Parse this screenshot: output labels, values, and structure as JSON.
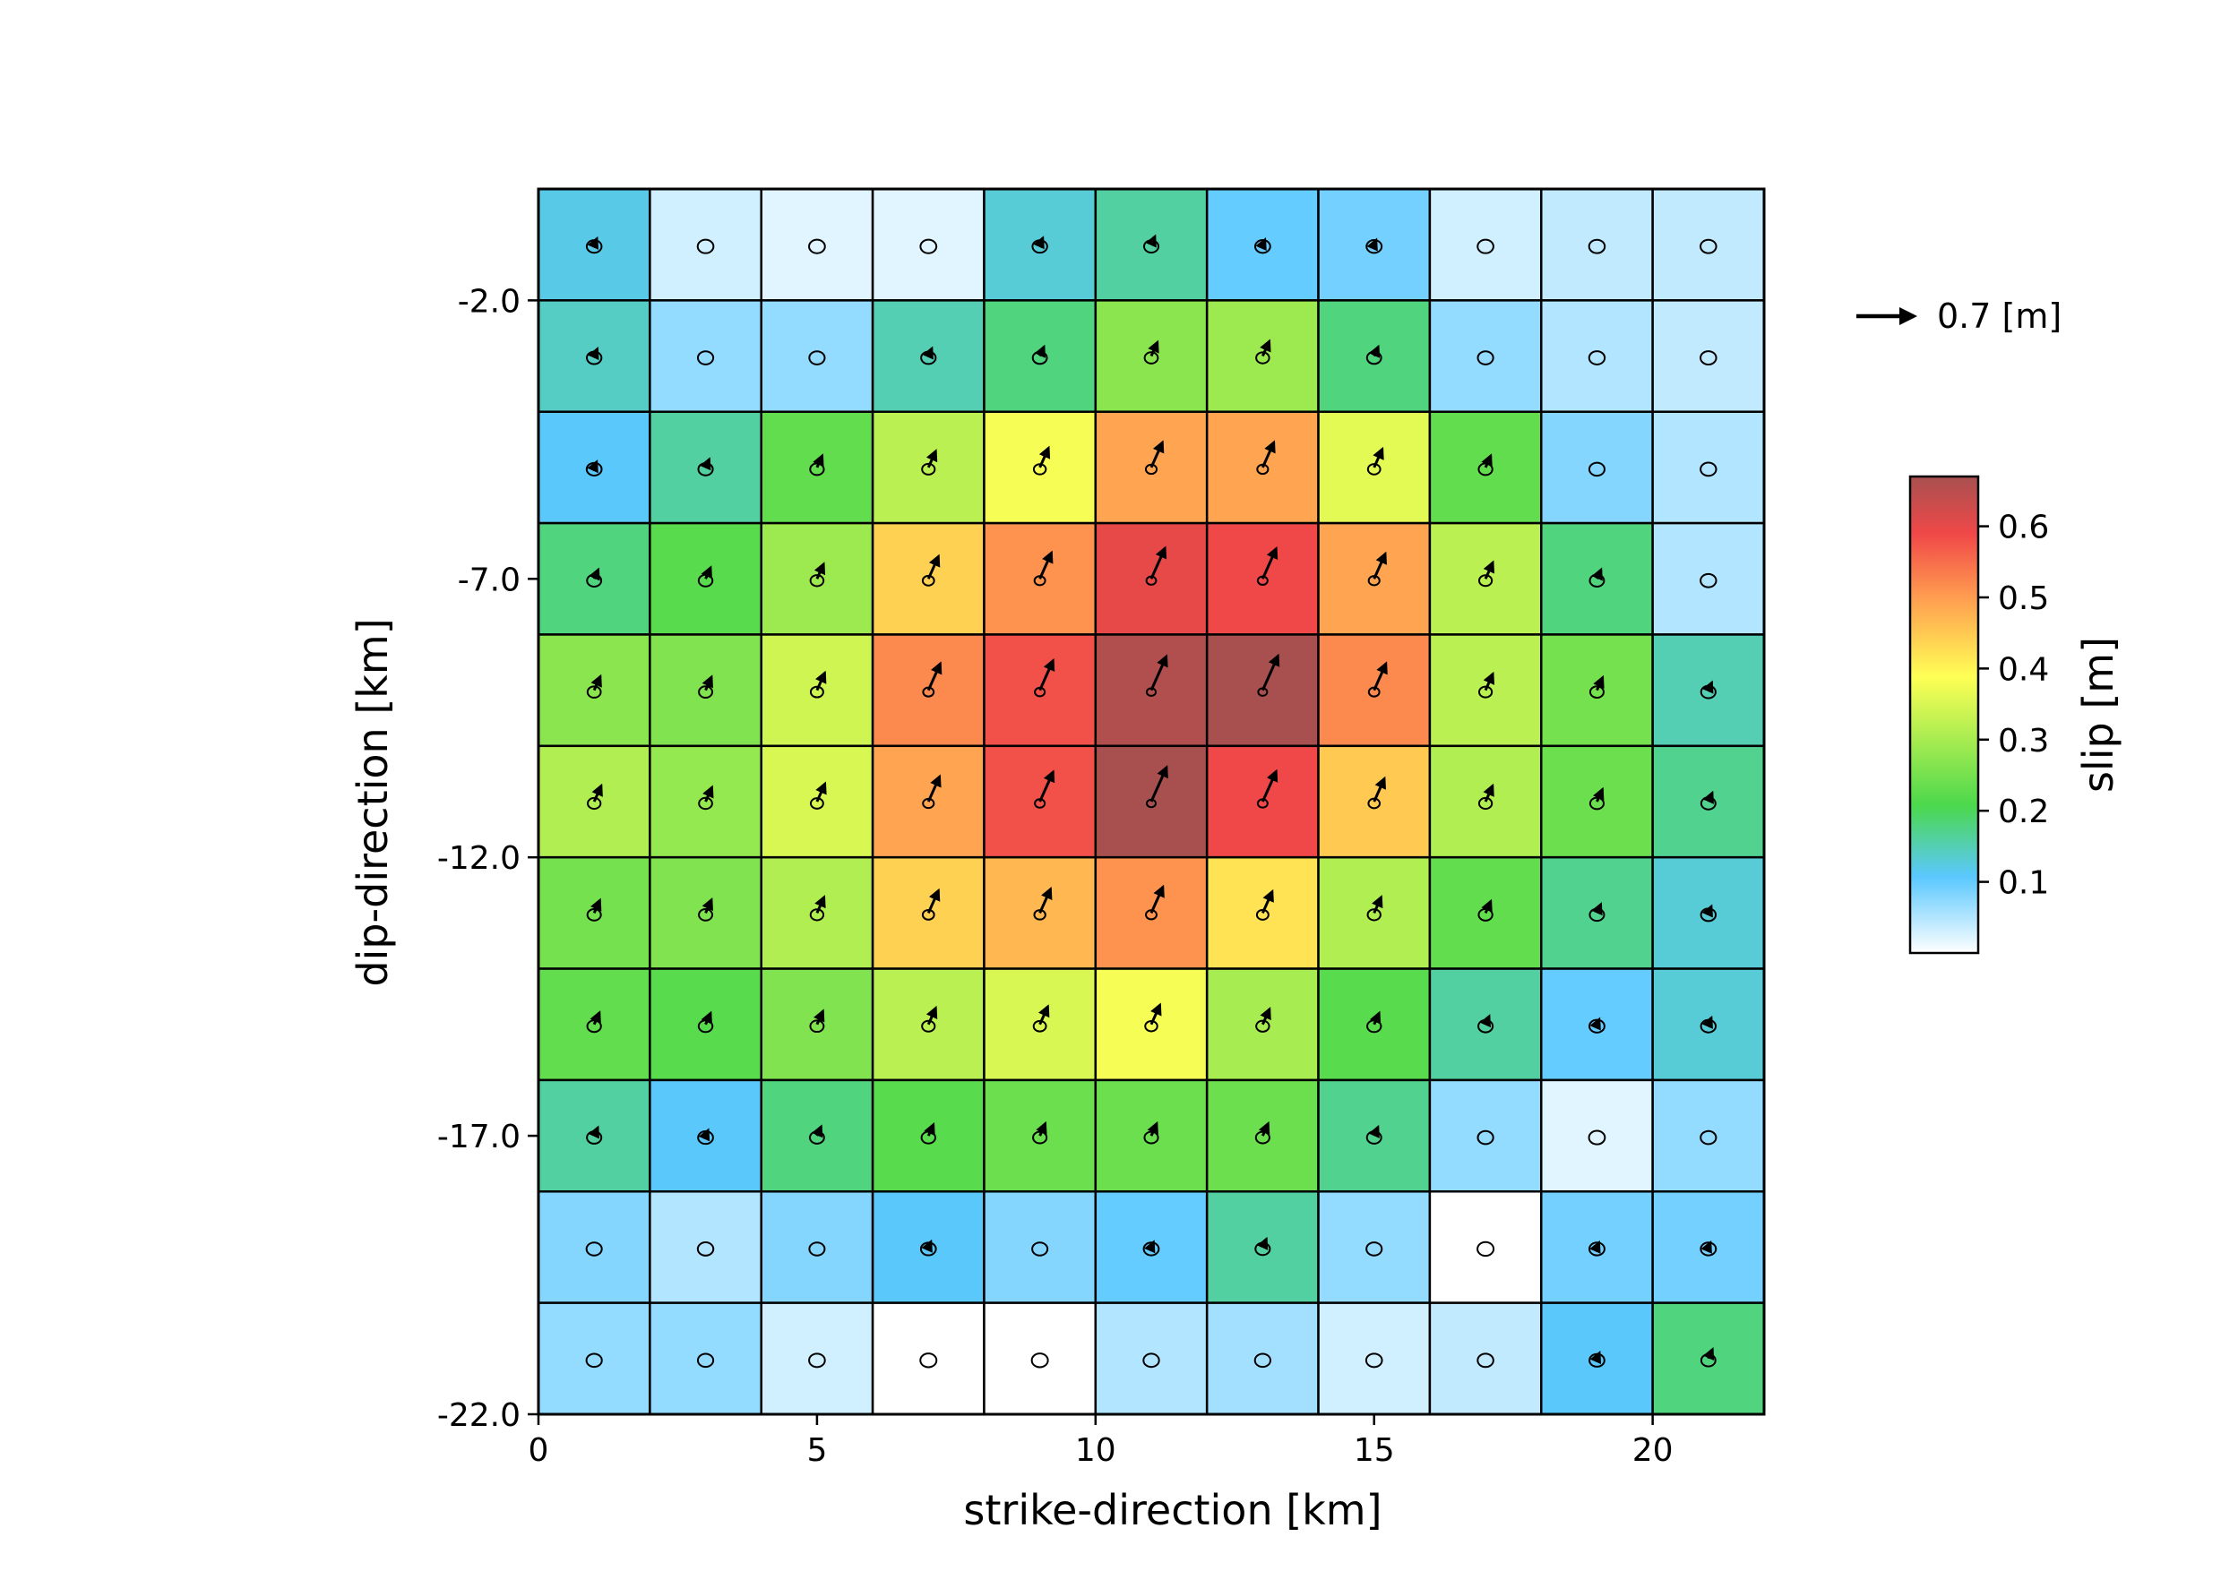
{
  "chart_data": {
    "type": "heatmap",
    "title": "",
    "xlabel": "strike-direction [km]",
    "ylabel": "dip-direction [km]",
    "xlim": [
      0,
      22
    ],
    "ylim": [
      -22,
      0
    ],
    "cell_size_km": 2,
    "x_ticks": [
      0,
      5,
      10,
      15,
      20
    ],
    "x_tick_labels": [
      "0",
      "5",
      "10",
      "15",
      "20"
    ],
    "y_ticks": [
      -2,
      -7,
      -12,
      -17,
      -22
    ],
    "y_tick_labels": [
      "-2.0",
      "-7.0",
      "-12.0",
      "-17.0",
      "-22.0"
    ],
    "colorbar": {
      "label": "slip [m]",
      "range": [
        0.0,
        0.67
      ],
      "ticks": [
        0.1,
        0.2,
        0.3,
        0.4,
        0.5,
        0.6
      ],
      "tick_labels": [
        "0.1",
        "0.2",
        "0.3",
        "0.4",
        "0.5",
        "0.6"
      ],
      "colors": [
        "#ffffff",
        "#5ac8ff",
        "#4cd84c",
        "#ffff55",
        "#ff9a50",
        "#f04848",
        "#a85050"
      ]
    },
    "reference_vector": {
      "length_m": 0.7,
      "label": "0.7 [m]"
    },
    "slip_grid_rows_top_to_bottom": [
      [
        0.12,
        0.03,
        0.02,
        0.02,
        0.13,
        0.16,
        0.1,
        0.09,
        0.03,
        0.04,
        0.04
      ],
      [
        0.14,
        0.07,
        0.07,
        0.15,
        0.18,
        0.27,
        0.29,
        0.18,
        0.07,
        0.05,
        0.04
      ],
      [
        0.11,
        0.16,
        0.23,
        0.32,
        0.38,
        0.49,
        0.49,
        0.36,
        0.23,
        0.08,
        0.05
      ],
      [
        0.18,
        0.22,
        0.29,
        0.44,
        0.51,
        0.6,
        0.59,
        0.49,
        0.32,
        0.18,
        0.05
      ],
      [
        0.27,
        0.26,
        0.34,
        0.52,
        0.58,
        0.66,
        0.67,
        0.52,
        0.32,
        0.25,
        0.15
      ],
      [
        0.31,
        0.28,
        0.35,
        0.49,
        0.58,
        0.67,
        0.59,
        0.45,
        0.31,
        0.24,
        0.17
      ],
      [
        0.25,
        0.26,
        0.31,
        0.44,
        0.47,
        0.51,
        0.42,
        0.31,
        0.23,
        0.17,
        0.13
      ],
      [
        0.23,
        0.22,
        0.26,
        0.32,
        0.35,
        0.38,
        0.3,
        0.22,
        0.16,
        0.1,
        0.13
      ],
      [
        0.16,
        0.11,
        0.18,
        0.22,
        0.24,
        0.24,
        0.24,
        0.17,
        0.07,
        0.02,
        0.07
      ],
      [
        0.08,
        0.05,
        0.08,
        0.11,
        0.08,
        0.1,
        0.16,
        0.07,
        0.0,
        0.09,
        0.09
      ],
      [
        0.07,
        0.07,
        0.03,
        0.0,
        0.0,
        0.05,
        0.06,
        0.03,
        0.04,
        0.11,
        0.18
      ]
    ]
  }
}
